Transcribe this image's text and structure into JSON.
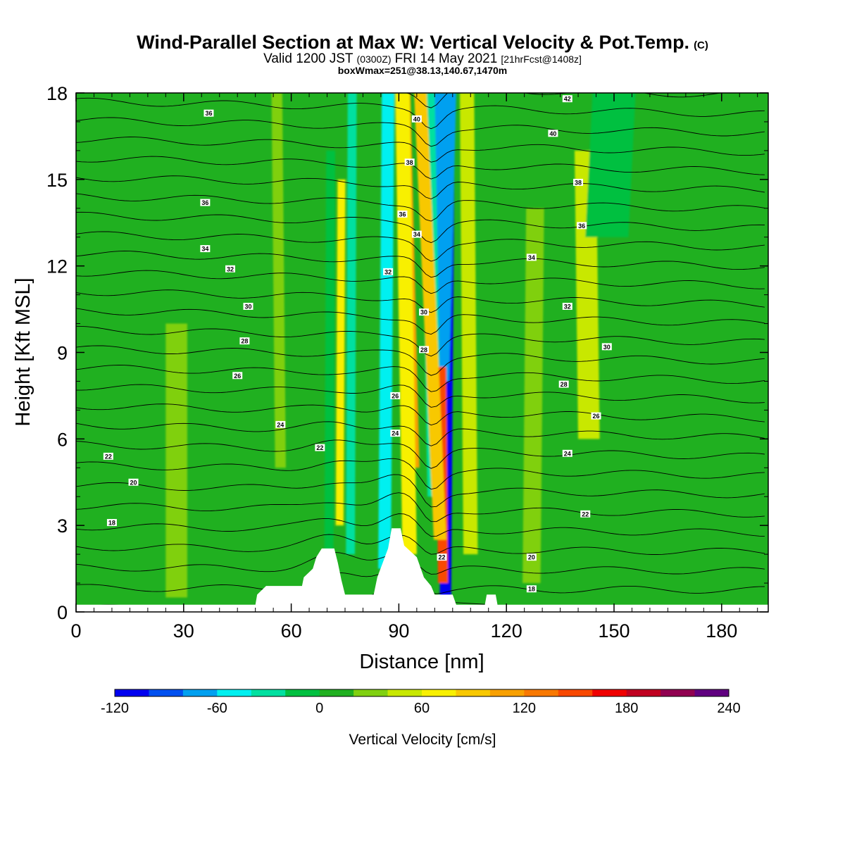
{
  "header": {
    "title": "Wind-Parallel Section at Max W: Vertical Velocity & Pot.Temp.",
    "title_mark": "(C)",
    "valid_prefix": "Valid 1200 JST",
    "valid_utc": "(0300Z)",
    "valid_date": "FRI 14 May 2021",
    "valid_fcst": "[21hrFcst@1408z]",
    "note": "boxWmax=251@38.13,140.67,1470m"
  },
  "chart_data": {
    "type": "heatmap",
    "title": "Wind-Parallel Section at Max W: Vertical Velocity & Pot.Temp.",
    "xlabel": "Distance [nm]",
    "ylabel": "Height [Kft MSL]",
    "xlim": [
      0,
      193
    ],
    "ylim": [
      0,
      18
    ],
    "x_ticks": [
      0,
      30,
      60,
      90,
      120,
      150,
      180
    ],
    "y_ticks": [
      0,
      3,
      6,
      9,
      12,
      15,
      18
    ],
    "x_tick_labels": [
      "0",
      "30",
      "60",
      "90",
      "120",
      "150",
      "180"
    ],
    "y_tick_labels": [
      "0",
      "3",
      "6",
      "9",
      "12",
      "15",
      "18"
    ],
    "background_value": 0,
    "colorbar": {
      "label": "Vertical Velocity [cm/s]",
      "min": -120,
      "max": 240,
      "step": 20,
      "tick_values": [
        -120,
        -60,
        0,
        60,
        120,
        180,
        240
      ],
      "tick_labels": [
        "-120",
        "-60",
        "0",
        "60",
        "120",
        "180",
        "240"
      ],
      "colors": [
        "#0000f0",
        "#0050f0",
        "#00a0f0",
        "#00f0f0",
        "#00e0a0",
        "#00c040",
        "#20b020",
        "#80d010",
        "#c8e800",
        "#f8f000",
        "#f8c800",
        "#f8a000",
        "#f87800",
        "#f84800",
        "#f00000",
        "#c00020",
        "#900050",
        "#600080"
      ]
    },
    "velocity_features": [
      {
        "x": 103,
        "x_at_top": 104,
        "y_bottom": 0.5,
        "y_top": 18,
        "width_nm": 3.2,
        "value": -120
      },
      {
        "x": 101,
        "x_at_top": 103,
        "y_bottom": 8,
        "y_top": 18,
        "width_nm": 6,
        "value": -80
      },
      {
        "x": 100,
        "x_at_top": 98,
        "y_bottom": 4,
        "y_top": 18,
        "width_nm": 4,
        "value": -40
      },
      {
        "x": 102.5,
        "x_at_top": 102.5,
        "y_bottom": 1.3,
        "y_top": 6.8,
        "width_nm": 1.8,
        "value": 200
      },
      {
        "x": 102.3,
        "x_at_top": 101.8,
        "y_bottom": 1,
        "y_top": 8.5,
        "width_nm": 2.8,
        "value": 140
      },
      {
        "x": 101.5,
        "x_at_top": 96,
        "y_bottom": 2.5,
        "y_top": 18,
        "width_nm": 3.5,
        "value": 80
      },
      {
        "x": 94.5,
        "x_at_top": 92,
        "y_bottom": 5,
        "y_top": 18,
        "width_nm": 2.5,
        "value": 100
      },
      {
        "x": 93,
        "x_at_top": 91,
        "y_bottom": 2,
        "y_top": 18,
        "width_nm": 4,
        "value": 60
      },
      {
        "x": 86,
        "x_at_top": 87,
        "y_bottom": 1.5,
        "y_top": 18,
        "width_nm": 3.5,
        "value": -60
      },
      {
        "x": 73.5,
        "x_at_top": 74,
        "y_bottom": 3,
        "y_top": 15,
        "width_nm": 2.2,
        "value": 60
      },
      {
        "x": 76.5,
        "x_at_top": 77,
        "y_bottom": 2,
        "y_top": 18,
        "width_nm": 2.5,
        "value": -40
      },
      {
        "x": 70.5,
        "x_at_top": 71,
        "y_bottom": 2,
        "y_top": 16,
        "width_nm": 2.5,
        "value": -20
      },
      {
        "x": 110,
        "x_at_top": 109,
        "y_bottom": 2,
        "y_top": 18,
        "width_nm": 4,
        "value": 40
      },
      {
        "x": 127,
        "x_at_top": 128,
        "y_bottom": 1,
        "y_top": 14,
        "width_nm": 5,
        "value": 20
      },
      {
        "x": 143,
        "x_at_top": 142,
        "y_bottom": 6,
        "y_top": 16,
        "width_nm": 6,
        "value": 40
      },
      {
        "x": 148,
        "x_at_top": 150,
        "y_bottom": 13,
        "y_top": 18,
        "width_nm": 12,
        "value": -20
      },
      {
        "x": 57,
        "x_at_top": 56,
        "y_bottom": 5,
        "y_top": 18,
        "width_nm": 3,
        "value": 20
      },
      {
        "x": 28,
        "x_at_top": 28,
        "y_bottom": 0.5,
        "y_top": 10,
        "width_nm": 6,
        "value": 20
      }
    ],
    "terrain": [
      [
        0,
        0.25
      ],
      [
        50,
        0.25
      ],
      [
        50.5,
        0.6
      ],
      [
        53,
        0.9
      ],
      [
        63,
        0.9
      ],
      [
        63.5,
        1.2
      ],
      [
        66,
        1.5
      ],
      [
        67,
        1.9
      ],
      [
        68.5,
        2.2
      ],
      [
        72,
        2.2
      ],
      [
        73,
        1.7
      ],
      [
        74,
        1.1
      ],
      [
        75,
        0.6
      ],
      [
        83,
        0.6
      ],
      [
        84,
        1.2
      ],
      [
        87,
        2.2
      ],
      [
        88,
        2.9
      ],
      [
        90.5,
        2.9
      ],
      [
        91.5,
        2.3
      ],
      [
        95,
        1.9
      ],
      [
        97,
        1.2
      ],
      [
        99,
        0.9
      ],
      [
        100,
        0.6
      ],
      [
        105,
        0.6
      ],
      [
        106,
        0.25
      ],
      [
        114,
        0.25
      ],
      [
        114.5,
        0.6
      ],
      [
        117,
        0.6
      ],
      [
        117.5,
        0.25
      ],
      [
        193,
        0.25
      ]
    ],
    "theta_label_positions": [
      {
        "label": "36",
        "x": 37,
        "y": 17.3
      },
      {
        "label": "36",
        "x": 36,
        "y": 14.2
      },
      {
        "label": "34",
        "x": 36,
        "y": 12.6
      },
      {
        "label": "32",
        "x": 43,
        "y": 11.9
      },
      {
        "label": "30",
        "x": 48,
        "y": 10.6
      },
      {
        "label": "28",
        "x": 47,
        "y": 9.4
      },
      {
        "label": "26",
        "x": 45,
        "y": 8.2
      },
      {
        "label": "24",
        "x": 57,
        "y": 6.5
      },
      {
        "label": "22",
        "x": 68,
        "y": 5.7
      },
      {
        "label": "22",
        "x": 9,
        "y": 5.4
      },
      {
        "label": "20",
        "x": 16,
        "y": 4.5
      },
      {
        "label": "18",
        "x": 10,
        "y": 3.1
      },
      {
        "label": "40",
        "x": 95,
        "y": 17.1
      },
      {
        "label": "38",
        "x": 93,
        "y": 15.6
      },
      {
        "label": "36",
        "x": 91,
        "y": 13.8
      },
      {
        "label": "34",
        "x": 95,
        "y": 13.1
      },
      {
        "label": "32",
        "x": 87,
        "y": 11.8
      },
      {
        "label": "30",
        "x": 97,
        "y": 10.4
      },
      {
        "label": "28",
        "x": 97,
        "y": 9.1
      },
      {
        "label": "26",
        "x": 89,
        "y": 7.5
      },
      {
        "label": "24",
        "x": 89,
        "y": 6.2
      },
      {
        "label": "22",
        "x": 102,
        "y": 1.9
      },
      {
        "label": "42",
        "x": 137,
        "y": 17.8
      },
      {
        "label": "40",
        "x": 133,
        "y": 16.6
      },
      {
        "label": "38",
        "x": 140,
        "y": 14.9
      },
      {
        "label": "36",
        "x": 141,
        "y": 13.4
      },
      {
        "label": "34",
        "x": 127,
        "y": 12.3
      },
      {
        "label": "32",
        "x": 137,
        "y": 10.6
      },
      {
        "label": "30",
        "x": 148,
        "y": 9.2
      },
      {
        "label": "28",
        "x": 136,
        "y": 7.9
      },
      {
        "label": "26",
        "x": 145,
        "y": 6.8
      },
      {
        "label": "24",
        "x": 137,
        "y": 5.5
      },
      {
        "label": "22",
        "x": 142,
        "y": 3.4
      },
      {
        "label": "20",
        "x": 127,
        "y": 1.9
      },
      {
        "label": "18",
        "x": 127,
        "y": 0.8
      }
    ]
  }
}
